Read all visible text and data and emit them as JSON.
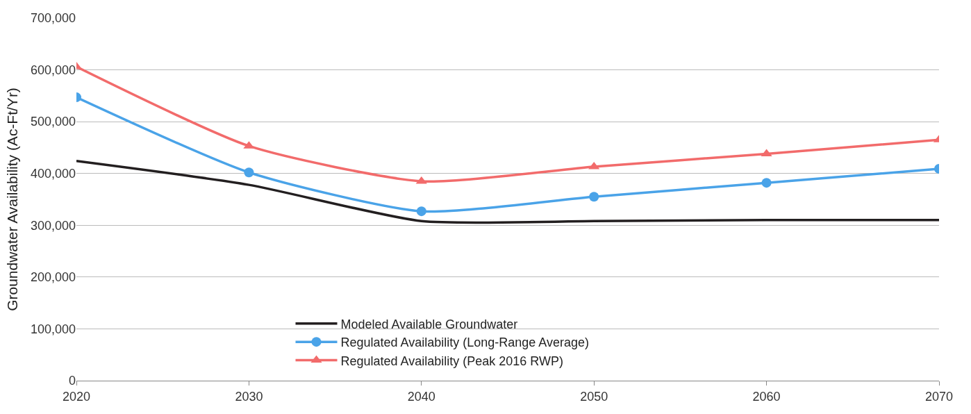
{
  "chart_data": {
    "type": "line",
    "ylabel": "Groundwater Availability (Ac-Ft/Yr)",
    "x": [
      2020,
      2030,
      2040,
      2050,
      2060,
      2070
    ],
    "xlim": [
      2020,
      2070
    ],
    "xticks": [
      2020,
      2030,
      2040,
      2050,
      2060,
      2070
    ],
    "ylim": [
      0,
      700000
    ],
    "yticks": [
      0,
      {
        "value": 100000,
        "label": "100,000"
      },
      {
        "value": 200000,
        "label": "200,000"
      },
      {
        "value": 300000,
        "label": "300,000"
      },
      {
        "value": 400000,
        "label": "400,000"
      },
      {
        "value": 500000,
        "label": "500,000"
      },
      {
        "value": 600000,
        "label": "600,000"
      },
      {
        "value": 700000,
        "label": "700,000"
      }
    ],
    "grid": "y",
    "legend": "bottom",
    "line_style": "solid",
    "series": [
      {
        "name": "Modeled Available Groundwater",
        "color": "#231f20",
        "marker": "none",
        "values": [
          424000,
          378000,
          308000,
          308000,
          310000,
          310000
        ]
      },
      {
        "name": "Regulated Availability (Long-Range Average)",
        "color": "#4aa3e8",
        "marker": "circle",
        "values": [
          547000,
          402000,
          327000,
          355000,
          382000,
          409000
        ]
      },
      {
        "name": "Regulated Availability (Peak 2016 RWP)",
        "color": "#f26b6b",
        "marker": "triangle",
        "values": [
          606000,
          453000,
          385000,
          413000,
          438000,
          465000
        ]
      }
    ]
  }
}
